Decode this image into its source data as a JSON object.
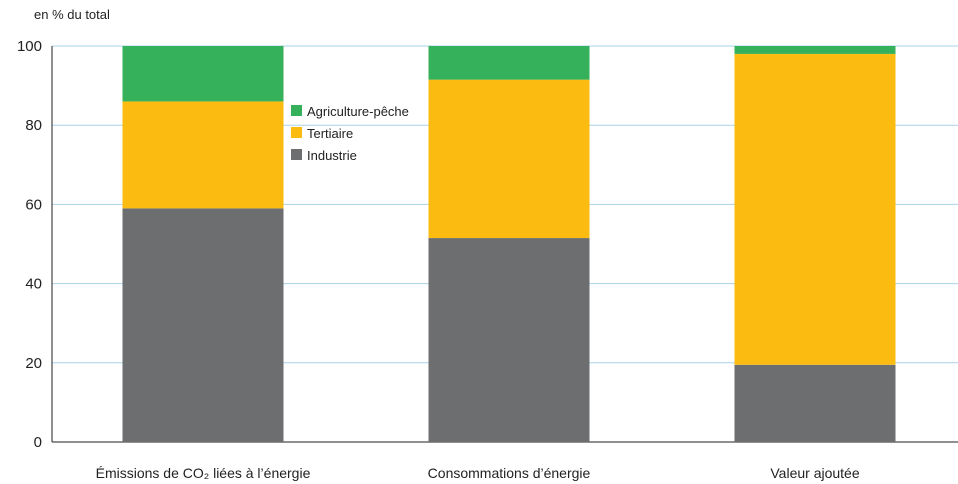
{
  "chart_data": {
    "type": "bar",
    "stacked": true,
    "y_unit": "en % du total",
    "ylim": [
      0,
      100
    ],
    "y_ticks": [
      0,
      20,
      40,
      60,
      80,
      100
    ],
    "grid": true,
    "legend_position": "top-center",
    "categories": [
      "Émissions de CO₂ liées à l’énergie",
      "Consommations d’énergie",
      "Valeur ajoutée"
    ],
    "series": [
      {
        "name": "Industrie",
        "color": "#6d6e70",
        "values": [
          59,
          51.5,
          19.5
        ]
      },
      {
        "name": "Tertiaire",
        "color": "#fbbb10",
        "values": [
          27,
          40,
          78.5
        ]
      },
      {
        "name": "Agriculture-pêche",
        "color": "#34b15a",
        "values": [
          14,
          8.5,
          2
        ]
      }
    ],
    "legend_order": [
      "Agriculture-pêche",
      "Tertiaire",
      "Industrie"
    ]
  }
}
